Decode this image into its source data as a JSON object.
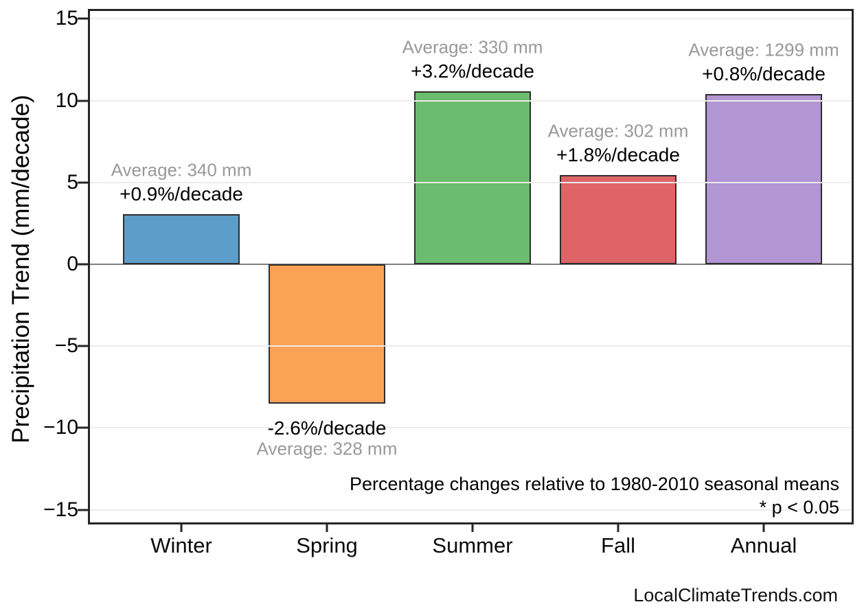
{
  "chart_data": {
    "type": "bar",
    "title": "",
    "xlabel": "",
    "ylabel": "Precipitation Trend (mm/decade)",
    "categories": [
      "Winter",
      "Spring",
      "Summer",
      "Fall",
      "Annual"
    ],
    "values": [
      3.06,
      -8.53,
      10.56,
      5.44,
      10.39
    ],
    "bar_colors": [
      "#5D9DC9",
      "#FBA257",
      "#6BBC6E",
      "#DF6467",
      "#B295D3"
    ],
    "bar_edge_color": "#2d2d2d",
    "ytick_labels": [
      "15",
      "10",
      "5",
      "0",
      "−5",
      "−10",
      "−15"
    ],
    "ytick_values": [
      15,
      10,
      5,
      0,
      -5,
      -10,
      -15
    ],
    "ylim": [
      -15.9,
      15.6
    ],
    "grid": true,
    "legend": "none",
    "annotations": [
      {
        "category": "Winter",
        "average": "Average: 340 mm",
        "pct": "+0.9%/decade"
      },
      {
        "category": "Spring",
        "average": "Average: 328 mm",
        "pct": "-2.6%/decade"
      },
      {
        "category": "Summer",
        "average": "Average: 330 mm",
        "pct": "+3.2%/decade"
      },
      {
        "category": "Fall",
        "average": "Average: 302 mm",
        "pct": "+1.8%/decade"
      },
      {
        "category": "Annual",
        "average": "Average: 1299 mm",
        "pct": "+0.8%/decade"
      }
    ],
    "note_line1": "Percentage changes relative to 1980-2010 seasonal means",
    "note_line2": "* p < 0.05"
  },
  "watermark": "LocalClimateTrends.com"
}
